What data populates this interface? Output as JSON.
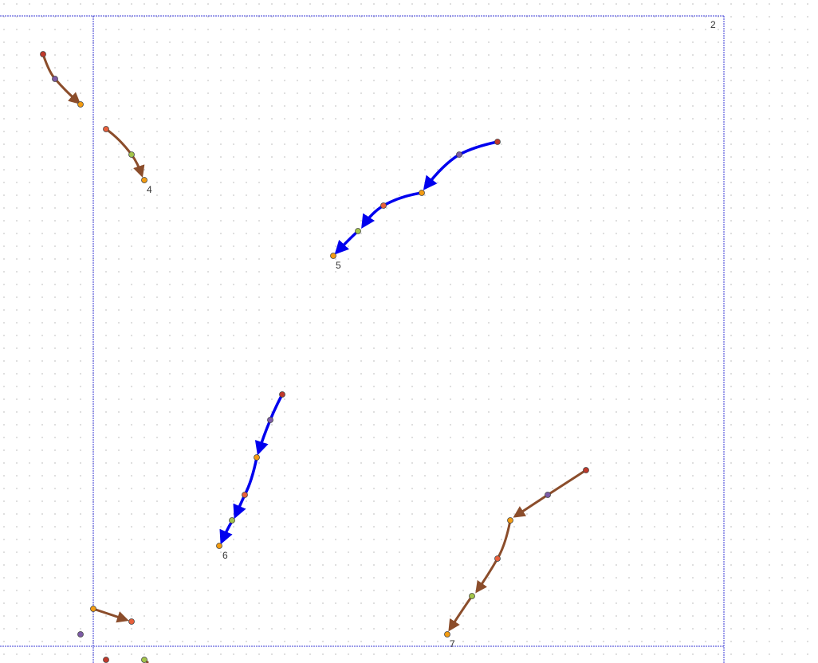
{
  "labels": {
    "panel_number": "2",
    "path_4": "4",
    "path_5": "5",
    "path_6": "6",
    "path_7": "7"
  },
  "colors": {
    "background": "#ffffff",
    "grid_dot": "#c8c8c8",
    "frame": "#3a3ad6",
    "brown": "#8b4d2b",
    "blue": "#0000ee",
    "dot_red": "#c0392b",
    "dot_purple": "#7d5ba6",
    "dot_orange": "#f39c12",
    "dot_salmon": "#e8603c",
    "dot_lime": "#a3c44a",
    "dot_stroke": "#444444"
  }
}
